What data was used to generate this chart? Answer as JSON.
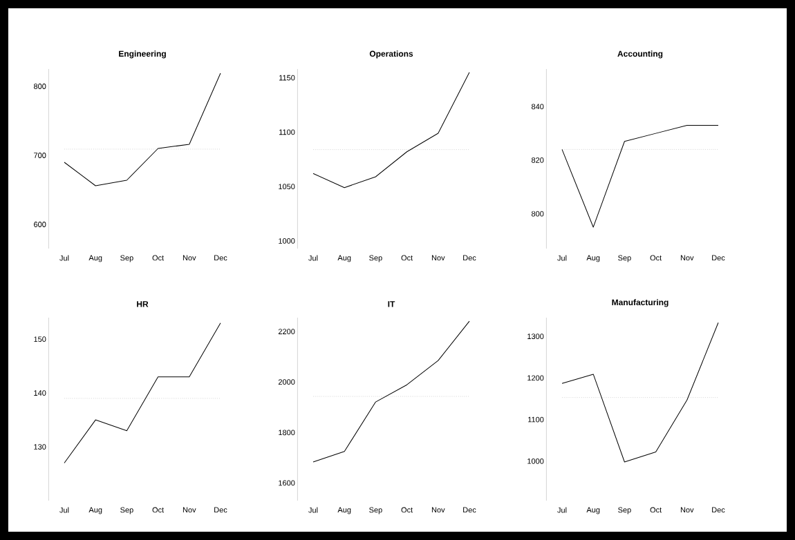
{
  "chart_data": [
    {
      "type": "line",
      "title": "Engineering",
      "categories": [
        "Jul",
        "Aug",
        "Sep",
        "Oct",
        "Nov",
        "Dec"
      ],
      "values": [
        690,
        656,
        664,
        710,
        716,
        819
      ],
      "color": "#000000",
      "ylim": [
        565,
        825
      ],
      "yticks": [
        600,
        700,
        800
      ],
      "ref_lines": [
        {
          "axis": "y",
          "value": 709,
          "color": "#c0c0c0",
          "line_style": "dotted"
        }
      ]
    },
    {
      "type": "line",
      "title": "Operations",
      "categories": [
        "Jul",
        "Aug",
        "Sep",
        "Oct",
        "Nov",
        "Dec"
      ],
      "values": [
        1062,
        1049,
        1059,
        1082,
        1099,
        1155
      ],
      "color": "#000000",
      "ylim": [
        993,
        1158
      ],
      "yticks": [
        1000,
        1050,
        1100,
        1150
      ],
      "ref_lines": [
        {
          "axis": "y",
          "value": 1084,
          "color": "#c0c0c0",
          "line_style": "dotted"
        }
      ]
    },
    {
      "type": "line",
      "title": "Accounting",
      "categories": [
        "Jul",
        "Aug",
        "Sep",
        "Oct",
        "Nov",
        "Dec"
      ],
      "values": [
        824,
        795,
        827,
        830,
        833,
        833
      ],
      "color": "#000000",
      "ylim": [
        787,
        854
      ],
      "yticks": [
        800,
        820,
        840
      ],
      "ref_lines": [
        {
          "axis": "y",
          "value": 824,
          "color": "#c0c0c0",
          "line_style": "dotted"
        }
      ]
    },
    {
      "type": "line",
      "title": "HR",
      "categories": [
        "Jul",
        "Aug",
        "Sep",
        "Oct",
        "Nov",
        "Dec"
      ],
      "values": [
        127,
        135,
        133,
        143,
        143,
        153
      ],
      "color": "#000000",
      "ylim": [
        120,
        154
      ],
      "yticks": [
        130,
        140,
        150
      ],
      "ref_lines": [
        {
          "axis": "y",
          "value": 139,
          "color": "#c0c0c0",
          "line_style": "dotted"
        }
      ]
    },
    {
      "type": "line",
      "title": "IT",
      "categories": [
        "Jul",
        "Aug",
        "Sep",
        "Oct",
        "Nov",
        "Dec"
      ],
      "values": [
        1683,
        1725,
        1921,
        1989,
        2085,
        2241
      ],
      "color": "#000000",
      "ylim": [
        1530,
        2255
      ],
      "yticks": [
        1600,
        1800,
        2000,
        2200
      ],
      "ref_lines": [
        {
          "axis": "y",
          "value": 1943,
          "color": "#c0c0c0",
          "line_style": "dotted"
        }
      ]
    },
    {
      "type": "line",
      "title": "Manufacturing",
      "categories": [
        "Jul",
        "Aug",
        "Sep",
        "Oct",
        "Nov",
        "Dec"
      ],
      "values": [
        1187,
        1209,
        998,
        1022,
        1147,
        1333
      ],
      "color": "#000000",
      "ylim": [
        905,
        1345
      ],
      "yticks": [
        1000,
        1100,
        1200,
        1300
      ],
      "ref_lines": [
        {
          "axis": "y",
          "value": 1153,
          "color": "#c0c0c0",
          "line_style": "dotted"
        }
      ]
    }
  ]
}
